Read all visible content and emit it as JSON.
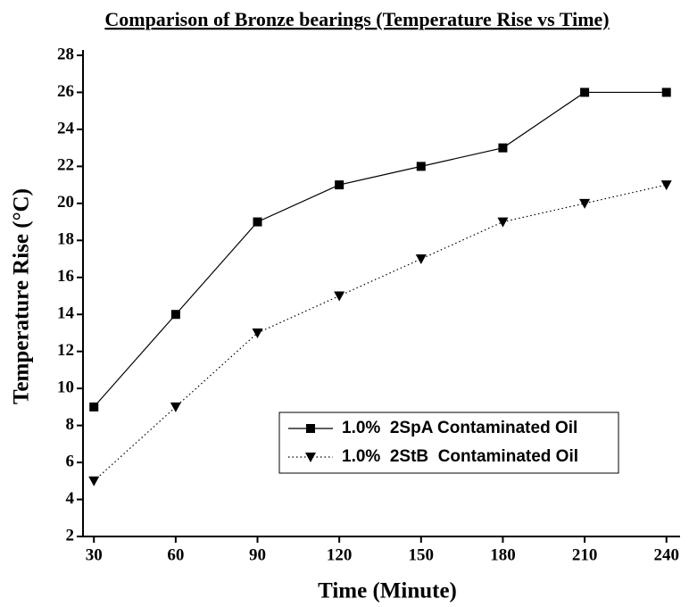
{
  "chart_data": {
    "type": "line",
    "title": "Comparison of Bronze bearings (Temperature Rise vs Time)",
    "x_label": "Time (Minute)",
    "y_label": "Temperature Rise (°C)",
    "x": [
      30,
      60,
      90,
      120,
      150,
      180,
      210,
      240
    ],
    "series": [
      {
        "name": "1.0%  2SpA Contaminated Oil",
        "color": "#000000",
        "line_style": "solid",
        "marker": "square",
        "values": [
          9,
          14,
          19,
          21,
          22,
          23,
          26,
          26
        ]
      },
      {
        "name": "1.0%  2StB  Contaminated Oil",
        "color": "#000000",
        "line_style": "dotted",
        "marker": "triangle-down",
        "values": [
          5,
          9,
          13,
          15,
          17,
          19,
          20,
          21
        ]
      }
    ],
    "xlim": [
      26,
      245
    ],
    "ylim": [
      2,
      28
    ],
    "xticks": [
      30,
      60,
      90,
      120,
      150,
      180,
      210,
      240
    ],
    "yticks": [
      2,
      4,
      6,
      8,
      10,
      12,
      14,
      16,
      18,
      20,
      22,
      24,
      26,
      28
    ],
    "grid": false,
    "legend": "lower right"
  }
}
